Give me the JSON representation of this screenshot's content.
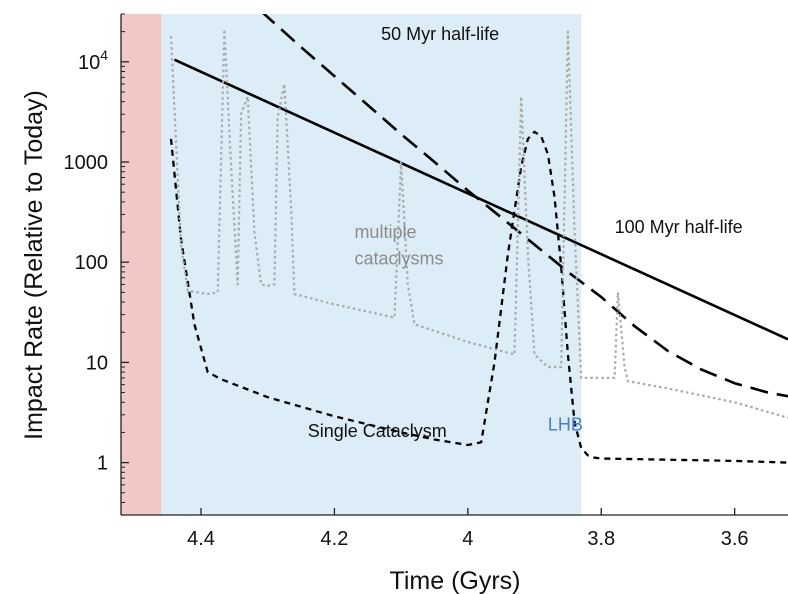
{
  "chart_data": {
    "type": "line",
    "title": "",
    "xlabel": "Time (Gyrs)",
    "ylabel": "Impact Rate (Relative to Today)",
    "x_reversed": true,
    "xlim": [
      4.52,
      3.52
    ],
    "yscale": "log",
    "ylim": [
      0.3,
      30000
    ],
    "x_ticks": [
      {
        "value": 4.4,
        "label": "4.4"
      },
      {
        "value": 4.2,
        "label": "4.2"
      },
      {
        "value": 4.0,
        "label": "4"
      },
      {
        "value": 3.8,
        "label": "3.8"
      },
      {
        "value": 3.6,
        "label": "3.6"
      }
    ],
    "y_ticks": [
      {
        "value": 10000,
        "label": "10",
        "sup": "4"
      },
      {
        "value": 1000,
        "label": "1000",
        "sup": ""
      },
      {
        "value": 100,
        "label": "100",
        "sup": ""
      },
      {
        "value": 10,
        "label": "10",
        "sup": ""
      },
      {
        "value": 1,
        "label": "1",
        "sup": ""
      }
    ],
    "grid": false,
    "regions": [
      {
        "name": "pre-crust",
        "x_from": 4.52,
        "x_to": 4.46,
        "color": "#f2c8c6",
        "label": ""
      },
      {
        "name": "lhb",
        "x_from": 4.46,
        "x_to": 3.83,
        "color": "#dcedf8",
        "label": "LHB",
        "label_color": "#4a7cc4"
      }
    ],
    "series": [
      {
        "name": "100 Myr half-life",
        "style": "solid",
        "color": "#000000",
        "width": 2.6,
        "x": [
          4.44,
          3.52
        ],
        "y": [
          10500,
          17
        ]
      },
      {
        "name": "50 Myr half-life",
        "style": "dashed",
        "color": "#000000",
        "width": 2.6,
        "x": [
          4.31,
          4.25,
          4.2,
          4.15,
          4.1,
          4.05,
          4.0,
          3.95,
          3.9,
          3.85,
          3.8,
          3.75,
          3.7,
          3.65,
          3.6,
          3.55,
          3.52
        ],
        "y": [
          32000,
          14000,
          7200,
          3700,
          1900,
          1000,
          520,
          280,
          150,
          80,
          45,
          23,
          13,
          8.5,
          6.2,
          5.0,
          4.6
        ]
      },
      {
        "name": "Single Cataclysm",
        "style": "short-dash",
        "color": "#000000",
        "width": 2.3,
        "x": [
          4.445,
          4.43,
          4.41,
          4.39,
          4.37,
          4.3,
          4.2,
          4.1,
          4.05,
          4.0,
          3.98,
          3.96,
          3.94,
          3.92,
          3.91,
          3.9,
          3.89,
          3.88,
          3.87,
          3.86,
          3.85,
          3.84,
          3.83,
          3.82,
          3.81,
          3.8,
          3.7,
          3.6,
          3.52
        ],
        "y": [
          1700,
          170,
          24,
          8,
          6.8,
          4.5,
          2.9,
          2.0,
          1.7,
          1.5,
          1.6,
          10,
          120,
          900,
          1700,
          2000,
          1800,
          1200,
          450,
          90,
          12,
          2.5,
          1.4,
          1.18,
          1.12,
          1.1,
          1.07,
          1.04,
          1.0
        ]
      },
      {
        "name": "multiple cataclysms",
        "style": "dotted",
        "color": "#a9a9a9",
        "width": 2.2,
        "x": [
          4.445,
          4.435,
          4.43,
          4.42,
          4.39,
          4.375,
          4.365,
          4.355,
          4.345,
          4.34,
          4.33,
          4.32,
          4.31,
          4.3,
          4.29,
          4.285,
          4.275,
          4.265,
          4.26,
          4.2,
          4.11,
          4.1,
          4.09,
          4.08,
          4.0,
          3.93,
          3.92,
          3.91,
          3.9,
          3.88,
          3.86,
          3.85,
          3.84,
          3.83,
          3.78,
          3.775,
          3.765,
          3.76,
          3.7,
          3.6,
          3.52
        ],
        "y": [
          18000,
          700,
          150,
          52,
          48,
          50,
          21000,
          900,
          60,
          3000,
          4500,
          200,
          60,
          58,
          60,
          2800,
          6000,
          350,
          48,
          38,
          28,
          1000,
          60,
          24,
          16,
          12,
          4500,
          120,
          12,
          9,
          9,
          20000,
          200,
          7,
          7,
          50,
          9,
          6.5,
          5.5,
          4,
          2.8
        ]
      }
    ],
    "annotations": [
      {
        "text": "50 Myr half-life",
        "x": 4.13,
        "y": 16500,
        "color": "#111111"
      },
      {
        "text": "100 Myr half-life",
        "x": 3.78,
        "y": 195,
        "color": "#111111"
      },
      {
        "text": "multiple",
        "x": 4.17,
        "y": 175,
        "color": "#8c8c8c"
      },
      {
        "text": "cataclysms",
        "x": 4.17,
        "y": 95,
        "color": "#8c8c8c"
      },
      {
        "text": "Single Cataclysm",
        "x": 4.24,
        "y": 1.8,
        "color": "#111111"
      },
      {
        "text": "LHB",
        "x": 3.88,
        "y": 2.1,
        "color": "#4a7cc4"
      }
    ]
  }
}
